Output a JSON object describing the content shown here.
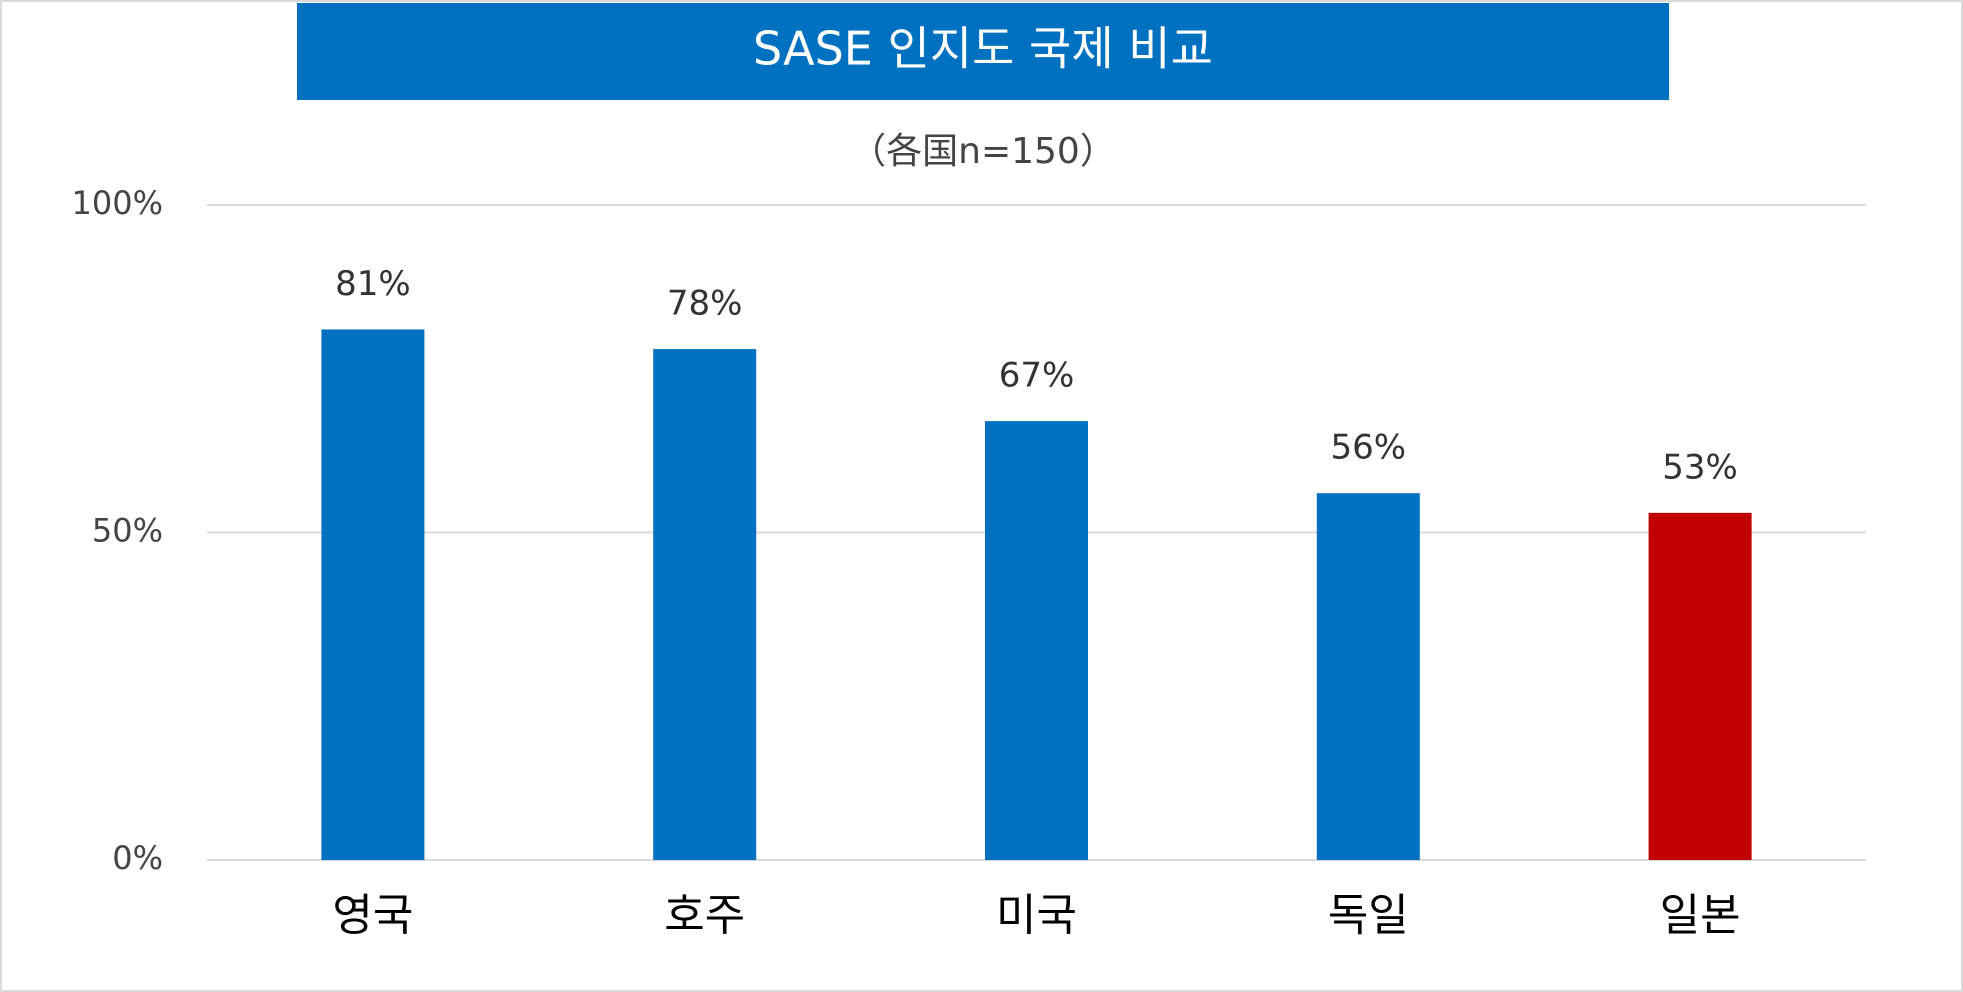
{
  "chart_data": {
    "type": "bar",
    "title": "SASE 인지도 국제 비교",
    "subtitle": "（各国n=150）",
    "categories": [
      "영국",
      "호주",
      "미국",
      "독일",
      "일본"
    ],
    "values": [
      81,
      78,
      67,
      56,
      53
    ],
    "value_labels": [
      "81%",
      "78%",
      "67%",
      "56%",
      "53%"
    ],
    "colors": [
      "#0070c0",
      "#0070c0",
      "#0070c0",
      "#0070c0",
      "#c00000"
    ],
    "ylim": [
      0,
      100
    ],
    "yticks": [
      {
        "value": 0,
        "label": "0%"
      },
      {
        "value": 50,
        "label": "50%"
      },
      {
        "value": 100,
        "label": "100%"
      }
    ],
    "grid": true
  }
}
